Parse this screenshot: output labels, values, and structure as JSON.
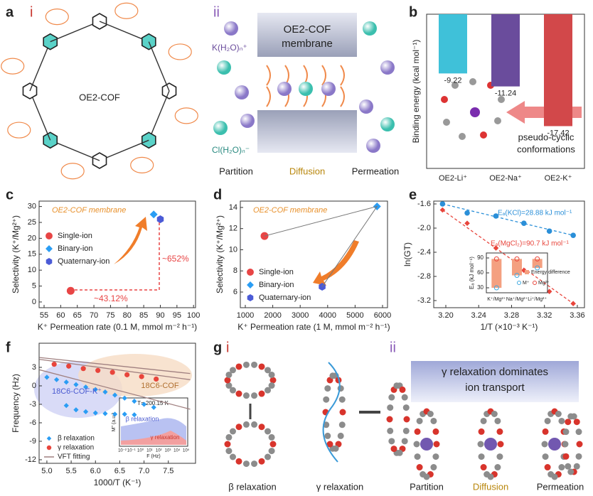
{
  "figure": {
    "letters": [
      "a",
      "b",
      "c",
      "d",
      "e",
      "f",
      "g"
    ],
    "a_i": "i",
    "a_ii": "ii",
    "cof": "OE2-COF",
    "membrane": [
      "OE2-COF",
      "membrane"
    ],
    "cation": "K(H₂O)ₙ⁺",
    "anion": "Cl(H₂O)ₙ⁻",
    "a_steps": [
      "Partition",
      "Diffusion",
      "Permeation"
    ],
    "g_i": "i",
    "g_ii": "ii",
    "g_labels": [
      "β relaxation",
      "γ relaxation"
    ],
    "banner": [
      "γ relaxation dominates",
      "ion transport"
    ],
    "g_steps": [
      "Partition",
      "Diffusion",
      "Permeation"
    ],
    "f_inset": {
      "temp": "T= 200.15 K",
      "beta": "β relaxation",
      "gamma": "γ relaxation",
      "ylabel": "M'' (a.u.)",
      "xlabel": "F (Hz)",
      "xticks": [
        "10⁻²",
        "10⁻¹",
        "10⁰",
        "10¹",
        "10²",
        "10³",
        "10⁴",
        "10⁵"
      ]
    }
  },
  "chart_data": [
    {
      "type": "bar",
      "ylabel": "Binding energy (kcal mol⁻¹)",
      "categories": [
        "OE2-Li⁺",
        "OE2-Na⁺",
        "OE2-K⁺"
      ],
      "values": [
        -9.22,
        -11.24,
        -17.42
      ],
      "colors": [
        "#3fc1d9",
        "#6a4c9c",
        "#d2484a"
      ],
      "ylim": [
        -24,
        0
      ],
      "annotation": [
        "pseudo-cyclic",
        "conformations"
      ]
    },
    {
      "type": "scatter",
      "title": "OE2-COF membrane",
      "xlabel": "K⁺ Permeation rate (0.1 M, mmol m⁻² h⁻¹)",
      "ylabel": "Selectivity (K⁺/Mg²⁺)",
      "xlim": [
        53.5,
        100.6
      ],
      "ylim": [
        -1.8,
        31.7
      ],
      "xticks": [
        55,
        60,
        65,
        70,
        75,
        80,
        85,
        90,
        95,
        100
      ],
      "yticks": [
        0,
        5,
        10,
        15,
        20,
        25,
        30
      ],
      "legend": "center left",
      "series": [
        {
          "name": "Single-ion",
          "color": "#e84545",
          "marker": "circle",
          "x": [
            63
          ],
          "values": [
            3.5
          ]
        },
        {
          "name": "Binary-ion",
          "color": "#2a9df4",
          "marker": "diamond",
          "x": [
            88
          ],
          "values": [
            27.5
          ]
        },
        {
          "name": "Quaternary-ion",
          "color": "#4b5bd6",
          "marker": "hexagon",
          "x": [
            90
          ],
          "values": [
            26
          ]
        }
      ],
      "annotations": [
        "~652%",
        "~43.12%"
      ]
    },
    {
      "type": "scatter",
      "title": "OE2-COF membrane",
      "xlabel": "K⁺ Permeation rate (1 M, mmol m⁻² h⁻¹)",
      "ylabel": "Selectivity (K⁺/Mg²⁺)",
      "xlim": [
        819,
        6181
      ],
      "ylim": [
        4.52,
        14.6
      ],
      "xticks": [
        1000,
        2000,
        3000,
        4000,
        5000,
        6000
      ],
      "yticks": [
        6,
        8,
        10,
        12,
        14
      ],
      "legend": "lower left",
      "series": [
        {
          "name": "Single-ion",
          "color": "#e84545",
          "marker": "circle",
          "x": [
            1700
          ],
          "values": [
            11.3
          ]
        },
        {
          "name": "Binary-ion",
          "color": "#2a9df4",
          "marker": "diamond",
          "x": [
            5800
          ],
          "values": [
            14.1
          ]
        },
        {
          "name": "Quaternary-ion",
          "color": "#4b5bd6",
          "marker": "hexagon",
          "x": [
            3800
          ],
          "values": [
            6.5
          ]
        }
      ]
    },
    {
      "type": "scatter",
      "xlabel": "1/T (×10⁻³ K⁻¹)",
      "ylabel": "ln(GT)",
      "xlim": [
        3.1853,
        3.3687
      ],
      "ylim": [
        -3.318,
        -1.553
      ],
      "xticks": [
        {
          "value": 3.2,
          "label": "3.20"
        },
        3.24,
        3.28,
        3.32,
        3.36
      ],
      "yticks": [
        -1.6,
        {
          "value": -2,
          "label": "-2.0"
        },
        -2.4,
        -2.8,
        -3.2
      ],
      "fit_lines": "dashed",
      "series": [
        {
          "color": "#2a8fd8",
          "marker": "circle",
          "x": [
            3.196,
            3.226,
            3.261,
            3.295,
            3.326,
            3.355
          ],
          "values": [
            -1.6,
            -1.75,
            -1.8,
            -1.92,
            -2.05,
            -2.12
          ]
        },
        {
          "color": "#e8453c",
          "marker": "diamond",
          "x": [
            3.196,
            3.226,
            3.261,
            3.295,
            3.326,
            3.355
          ],
          "values": [
            -1.7,
            -1.92,
            -2.33,
            -2.7,
            -3.05,
            -3.25
          ]
        }
      ],
      "annotations": [
        "Eₐ(KCl)=28.88 kJ mol⁻¹",
        "Eₐ(MgCl₂)=90.7 kJ mol⁻¹"
      ]
    },
    {
      "type": "bar",
      "ylabel": "Eₐ (kJ mol⁻¹)",
      "categories": [
        "K⁺/Mg²⁺",
        "Na⁺/Mg²⁺",
        "Li⁺/Mg²⁺"
      ],
      "ylim": [
        20,
        100
      ],
      "yticks": [
        30,
        60,
        90
      ],
      "series": [
        {
          "name": "Energy difference",
          "color": "#f4a080",
          "values": [
            58,
            33,
            18
          ]
        },
        {
          "name": "M⁺",
          "color": "#3fa9e0",
          "values": [
            30,
            55,
            70
          ]
        },
        {
          "name": "Mg²⁺",
          "color": "#e8453c",
          "values": [
            88,
            88,
            88
          ]
        }
      ]
    },
    {
      "type": "scatter",
      "xlabel": "1000/T (K⁻¹)",
      "ylabel": "Frequency (Hz)",
      "xlim": [
        4.84,
        8.06
      ],
      "ylim": [
        -12.58,
        6.92
      ],
      "xticks": [
        {
          "value": 5,
          "label": "5.0"
        },
        5.5,
        {
          "value": 6,
          "label": "6.0"
        },
        6.5,
        {
          "value": 7,
          "label": "7.0"
        },
        7.5
      ],
      "yticks": [
        -12,
        -9,
        -6,
        -3,
        0,
        3
      ],
      "legend": "lower left",
      "series": [
        {
          "name": "β relaxation",
          "color": "#2a9df4",
          "marker": "diamond",
          "x": [
            5.0,
            5.2,
            5.4,
            5.6,
            5.8,
            6.0,
            6.2,
            6.4,
            6.6,
            6.8,
            7.0,
            7.2,
            5.4,
            5.6,
            5.8,
            6.0,
            6.2,
            6.4,
            6.6,
            6.8
          ],
          "values": [
            1.4,
            1.0,
            0.6,
            0.2,
            -0.2,
            -0.6,
            -1.0,
            -1.5,
            -2.0,
            -2.5,
            -3.0,
            -3.5,
            -3.2,
            -3.9,
            -4.2,
            -4.4,
            -4.5,
            -4.6,
            -4.6,
            -4.7
          ]
        },
        {
          "name": "γ relaxation",
          "color": "#e8453c",
          "marker": "circle",
          "x": [
            5.15,
            5.45,
            5.75,
            6.05,
            6.35,
            6.65,
            6.95,
            7.25
          ],
          "values": [
            3.5,
            3.2,
            2.8,
            2.5,
            2.2,
            1.8,
            1.5,
            1.1
          ]
        },
        {
          "name": "VFT fitting",
          "color": "#a08080",
          "line": true,
          "x": [
            4.85,
            7.95,
            7.95,
            4.85,
            7.95,
            7.95,
            4.85,
            7.95
          ],
          "values": [
            4.3,
            1.0,
            null,
            4.6,
            2.0,
            null,
            2.6,
            -3.8
          ]
        }
      ],
      "annotations": [
        "18C6-COF-K⁺",
        "18C6-COF"
      ]
    }
  ]
}
